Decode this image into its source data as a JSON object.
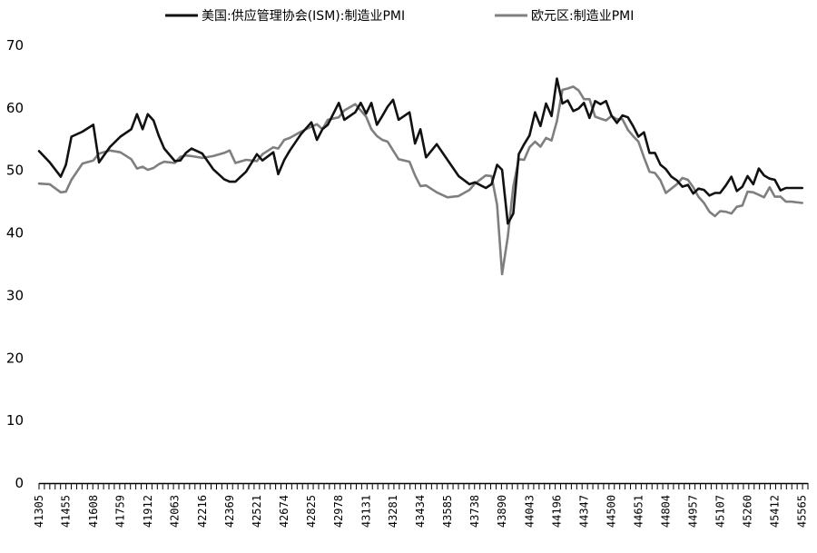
{
  "chart_data": {
    "type": "line",
    "title": "",
    "xlabel": "",
    "ylabel": "",
    "ylim": [
      0,
      70
    ],
    "yticks": [
      0,
      10,
      20,
      30,
      40,
      50,
      60,
      70
    ],
    "xlim": [
      41305,
      45597
    ],
    "xticks": [
      41305,
      41455,
      41608,
      41759,
      41912,
      42063,
      42216,
      42369,
      42521,
      42674,
      42825,
      42978,
      43131,
      43281,
      43434,
      43585,
      43738,
      43890,
      44043,
      44196,
      44347,
      44500,
      44651,
      44804,
      44957,
      45107,
      45260,
      45412,
      45565
    ],
    "grid": false,
    "legend_position": "top",
    "series": [
      {
        "name": "美国:供应管理协会(ISM):制造业PMI",
        "color": "#111111",
        "points": [
          [
            41305,
            53.1
          ],
          [
            41365,
            51.3
          ],
          [
            41426,
            49.0
          ],
          [
            41455,
            50.9
          ],
          [
            41486,
            55.4
          ],
          [
            41547,
            56.2
          ],
          [
            41608,
            57.3
          ],
          [
            41640,
            51.3
          ],
          [
            41699,
            53.7
          ],
          [
            41759,
            55.4
          ],
          [
            41820,
            56.6
          ],
          [
            41852,
            59.0
          ],
          [
            41883,
            56.6
          ],
          [
            41912,
            59.0
          ],
          [
            41944,
            58.0
          ],
          [
            41974,
            55.5
          ],
          [
            42004,
            53.5
          ],
          [
            42063,
            51.5
          ],
          [
            42094,
            51.6
          ],
          [
            42125,
            52.8
          ],
          [
            42156,
            53.5
          ],
          [
            42216,
            52.7
          ],
          [
            42277,
            50.2
          ],
          [
            42338,
            48.6
          ],
          [
            42369,
            48.2
          ],
          [
            42401,
            48.2
          ],
          [
            42461,
            49.8
          ],
          [
            42521,
            52.6
          ],
          [
            42552,
            51.6
          ],
          [
            42613,
            52.9
          ],
          [
            42640,
            49.4
          ],
          [
            42674,
            51.7
          ],
          [
            42705,
            53.2
          ],
          [
            42767,
            55.8
          ],
          [
            42825,
            57.7
          ],
          [
            42856,
            54.9
          ],
          [
            42887,
            56.6
          ],
          [
            42917,
            57.3
          ],
          [
            42978,
            60.8
          ],
          [
            43009,
            58.1
          ],
          [
            43070,
            59.3
          ],
          [
            43101,
            60.8
          ],
          [
            43131,
            59.1
          ],
          [
            43160,
            60.8
          ],
          [
            43191,
            57.3
          ],
          [
            43221,
            58.7
          ],
          [
            43251,
            60.2
          ],
          [
            43281,
            61.3
          ],
          [
            43312,
            58.1
          ],
          [
            43373,
            59.3
          ],
          [
            43404,
            54.3
          ],
          [
            43434,
            56.6
          ],
          [
            43465,
            52.1
          ],
          [
            43525,
            54.2
          ],
          [
            43585,
            51.7
          ],
          [
            43647,
            49.1
          ],
          [
            43708,
            47.8
          ],
          [
            43738,
            48.1
          ],
          [
            43799,
            47.2
          ],
          [
            43831,
            47.8
          ],
          [
            43862,
            50.9
          ],
          [
            43890,
            50.1
          ],
          [
            43922,
            41.5
          ],
          [
            43952,
            43.1
          ],
          [
            43983,
            52.6
          ],
          [
            44013,
            54.2
          ],
          [
            44043,
            55.6
          ],
          [
            44074,
            59.3
          ],
          [
            44104,
            57.1
          ],
          [
            44135,
            60.7
          ],
          [
            44166,
            58.7
          ],
          [
            44196,
            64.7
          ],
          [
            44227,
            60.7
          ],
          [
            44256,
            61.2
          ],
          [
            44287,
            59.5
          ],
          [
            44317,
            59.9
          ],
          [
            44347,
            60.8
          ],
          [
            44378,
            58.4
          ],
          [
            44409,
            61.1
          ],
          [
            44439,
            60.6
          ],
          [
            44470,
            61.1
          ],
          [
            44500,
            58.8
          ],
          [
            44531,
            57.6
          ],
          [
            44562,
            58.8
          ],
          [
            44592,
            58.5
          ],
          [
            44621,
            57.1
          ],
          [
            44651,
            55.4
          ],
          [
            44682,
            56.1
          ],
          [
            44713,
            52.8
          ],
          [
            44743,
            52.8
          ],
          [
            44774,
            50.9
          ],
          [
            44804,
            50.2
          ],
          [
            44835,
            49.0
          ],
          [
            44866,
            48.4
          ],
          [
            44896,
            47.4
          ],
          [
            44927,
            47.7
          ],
          [
            44957,
            46.3
          ],
          [
            44986,
            47.1
          ],
          [
            45017,
            46.9
          ],
          [
            45047,
            46.0
          ],
          [
            45078,
            46.4
          ],
          [
            45107,
            46.4
          ],
          [
            45139,
            47.6
          ],
          [
            45170,
            49.0
          ],
          [
            45200,
            46.7
          ],
          [
            45231,
            47.4
          ],
          [
            45260,
            49.1
          ],
          [
            45292,
            47.8
          ],
          [
            45323,
            50.3
          ],
          [
            45352,
            49.2
          ],
          [
            45383,
            48.7
          ],
          [
            45412,
            48.5
          ],
          [
            45444,
            46.8
          ],
          [
            45474,
            47.2
          ],
          [
            45505,
            47.2
          ],
          [
            45565,
            47.2
          ]
        ]
      },
      {
        "name": "欧元区:制造业PMI",
        "color": "#7f7f7f",
        "points": [
          [
            41305,
            47.9
          ],
          [
            41365,
            47.8
          ],
          [
            41426,
            46.5
          ],
          [
            41455,
            46.6
          ],
          [
            41486,
            48.5
          ],
          [
            41547,
            51.1
          ],
          [
            41608,
            51.6
          ],
          [
            41640,
            52.7
          ],
          [
            41699,
            53.2
          ],
          [
            41759,
            52.9
          ],
          [
            41820,
            51.8
          ],
          [
            41852,
            50.3
          ],
          [
            41883,
            50.6
          ],
          [
            41912,
            50.1
          ],
          [
            41944,
            50.4
          ],
          [
            41974,
            51.0
          ],
          [
            42004,
            51.4
          ],
          [
            42063,
            51.2
          ],
          [
            42094,
            52.2
          ],
          [
            42125,
            52.4
          ],
          [
            42156,
            52.3
          ],
          [
            42216,
            52.0
          ],
          [
            42277,
            52.3
          ],
          [
            42338,
            52.8
          ],
          [
            42369,
            53.2
          ],
          [
            42401,
            51.2
          ],
          [
            42461,
            51.7
          ],
          [
            42521,
            51.5
          ],
          [
            42552,
            52.6
          ],
          [
            42613,
            53.7
          ],
          [
            42640,
            53.5
          ],
          [
            42674,
            54.9
          ],
          [
            42705,
            55.2
          ],
          [
            42767,
            56.2
          ],
          [
            42825,
            57.0
          ],
          [
            42856,
            57.4
          ],
          [
            42887,
            56.6
          ],
          [
            42917,
            58.1
          ],
          [
            42978,
            58.5
          ],
          [
            43009,
            59.6
          ],
          [
            43070,
            60.6
          ],
          [
            43101,
            59.6
          ],
          [
            43131,
            58.6
          ],
          [
            43160,
            56.6
          ],
          [
            43191,
            55.5
          ],
          [
            43221,
            54.9
          ],
          [
            43251,
            54.6
          ],
          [
            43281,
            53.2
          ],
          [
            43312,
            51.8
          ],
          [
            43373,
            51.4
          ],
          [
            43404,
            49.2
          ],
          [
            43434,
            47.5
          ],
          [
            43465,
            47.6
          ],
          [
            43525,
            46.5
          ],
          [
            43585,
            45.7
          ],
          [
            43647,
            45.9
          ],
          [
            43708,
            46.9
          ],
          [
            43738,
            47.9
          ],
          [
            43799,
            49.2
          ],
          [
            43831,
            49.1
          ],
          [
            43862,
            44.5
          ],
          [
            43890,
            33.4
          ],
          [
            43922,
            39.4
          ],
          [
            43952,
            47.4
          ],
          [
            43983,
            51.8
          ],
          [
            44013,
            51.7
          ],
          [
            44043,
            53.7
          ],
          [
            44074,
            54.6
          ],
          [
            44104,
            53.8
          ],
          [
            44135,
            55.2
          ],
          [
            44166,
            54.8
          ],
          [
            44196,
            57.9
          ],
          [
            44227,
            62.9
          ],
          [
            44256,
            63.1
          ],
          [
            44287,
            63.4
          ],
          [
            44317,
            62.8
          ],
          [
            44347,
            61.4
          ],
          [
            44378,
            61.4
          ],
          [
            44409,
            58.6
          ],
          [
            44439,
            58.3
          ],
          [
            44470,
            58.0
          ],
          [
            44500,
            58.7
          ],
          [
            44531,
            58.2
          ],
          [
            44562,
            58.2
          ],
          [
            44592,
            56.5
          ],
          [
            44621,
            55.5
          ],
          [
            44651,
            54.6
          ],
          [
            44682,
            52.1
          ],
          [
            44713,
            49.8
          ],
          [
            44743,
            49.6
          ],
          [
            44774,
            48.4
          ],
          [
            44804,
            46.4
          ],
          [
            44835,
            47.1
          ],
          [
            44866,
            47.8
          ],
          [
            44896,
            48.8
          ],
          [
            44927,
            48.5
          ],
          [
            44957,
            47.3
          ],
          [
            44986,
            45.8
          ],
          [
            45017,
            44.8
          ],
          [
            45047,
            43.4
          ],
          [
            45078,
            42.7
          ],
          [
            45107,
            43.5
          ],
          [
            45139,
            43.4
          ],
          [
            45170,
            43.1
          ],
          [
            45200,
            44.2
          ],
          [
            45231,
            44.4
          ],
          [
            45260,
            46.6
          ],
          [
            45292,
            46.5
          ],
          [
            45323,
            46.1
          ],
          [
            45352,
            45.7
          ],
          [
            45383,
            47.3
          ],
          [
            45412,
            45.8
          ],
          [
            45444,
            45.8
          ],
          [
            45474,
            45.0
          ],
          [
            45505,
            45.0
          ],
          [
            45565,
            44.8
          ]
        ]
      }
    ]
  }
}
